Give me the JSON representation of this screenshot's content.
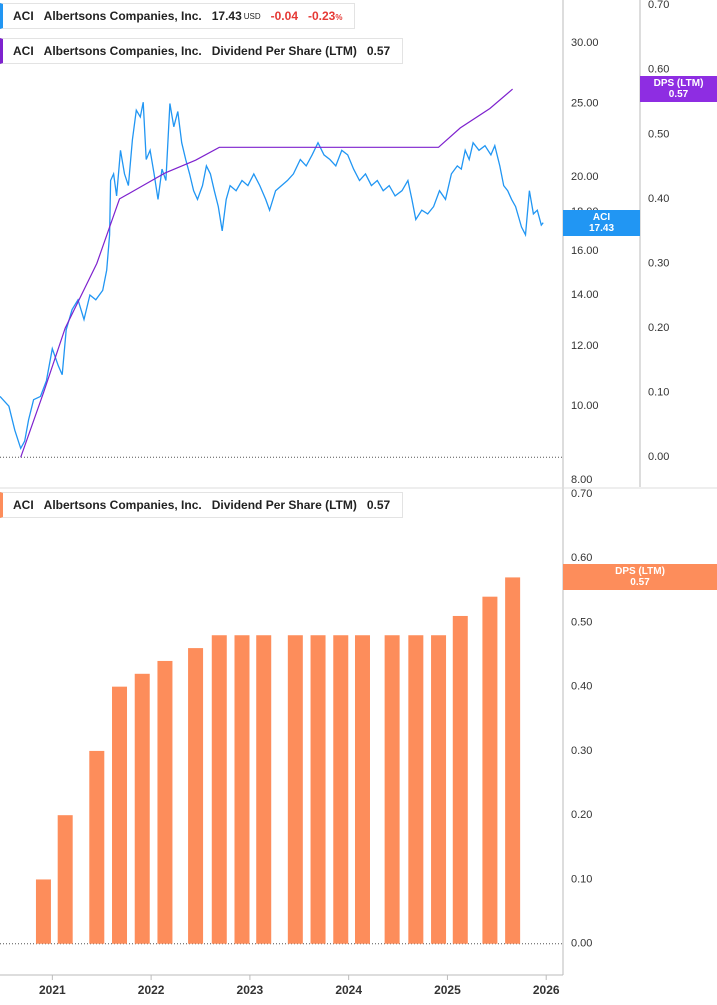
{
  "chart_data": [
    {
      "type": "line",
      "legend": [
        {
          "ticker": "ACI",
          "company": "Albertsons Companies, Inc.",
          "last": 17.43,
          "currency": "USD",
          "change": -0.04,
          "change_pct": -0.23,
          "pct_sign": "%"
        },
        {
          "ticker": "ACI",
          "company": "Albertsons Companies, Inc.",
          "metric": "Dividend Per Share (LTM)",
          "last": 0.57
        }
      ],
      "badges": [
        {
          "label": "ACI",
          "value": 17.43,
          "axis": "y",
          "color": "#2196f3"
        },
        {
          "label": "DPS (LTM)",
          "value": 0.57,
          "axis": "y2",
          "color": "#8e2de2"
        }
      ],
      "xlim": [
        2020.47,
        2026.17
      ],
      "log_y": true,
      "ylim": [
        7.83,
        34.2
      ],
      "yticks": [
        {
          "value": 8,
          "label": "8.00"
        },
        {
          "value": 10,
          "label": "10.00"
        },
        {
          "value": 12,
          "label": "12.00"
        },
        {
          "value": 14,
          "label": "14.00"
        },
        {
          "value": 16,
          "label": "16.00"
        },
        {
          "value": 18,
          "label": "18.00"
        },
        {
          "value": 20,
          "label": "20.00"
        },
        {
          "value": 25,
          "label": "25.00"
        },
        {
          "value": 30,
          "label": "30.00"
        }
      ],
      "y2lim": [
        -0.046,
        0.708
      ],
      "y2ticks": [
        {
          "value": 0,
          "label": "0.00"
        },
        {
          "value": 0.1,
          "label": "0.10"
        },
        {
          "value": 0.2,
          "label": "0.20"
        },
        {
          "value": 0.3,
          "label": "0.30"
        },
        {
          "value": 0.4,
          "label": "0.40"
        },
        {
          "value": 0.5,
          "label": "0.50"
        },
        {
          "value": 0.6,
          "label": "0.60"
        },
        {
          "value": 0.7,
          "label": "0.70"
        }
      ],
      "series": [
        {
          "name": "ACI",
          "color": "#2196f3",
          "x": [
            2020.47,
            2020.56,
            2020.62,
            2020.68,
            2020.72,
            2020.76,
            2020.81,
            2020.88,
            2020.94,
            2021.0,
            2021.06,
            2021.1,
            2021.14,
            2021.2,
            2021.26,
            2021.32,
            2021.38,
            2021.44,
            2021.51,
            2021.55,
            2021.58,
            2021.59,
            2021.62,
            2021.65,
            2021.69,
            2021.73,
            2021.77,
            2021.81,
            2021.85,
            2021.89,
            2021.92,
            2021.95,
            2021.99,
            2022.03,
            2022.07,
            2022.11,
            2022.15,
            2022.19,
            2022.23,
            2022.27,
            2022.31,
            2022.35,
            2022.39,
            2022.43,
            2022.47,
            2022.52,
            2022.56,
            2022.6,
            2022.64,
            2022.68,
            2022.72,
            2022.76,
            2022.8,
            2022.86,
            2022.92,
            2022.98,
            2023.04,
            2023.1,
            2023.16,
            2023.2,
            2023.26,
            2023.32,
            2023.38,
            2023.44,
            2023.51,
            2023.57,
            2023.63,
            2023.69,
            2023.75,
            2023.81,
            2023.87,
            2023.93,
            2023.99,
            2024.05,
            2024.11,
            2024.17,
            2024.23,
            2024.29,
            2024.35,
            2024.41,
            2024.47,
            2024.54,
            2024.6,
            2024.64,
            2024.68,
            2024.74,
            2024.8,
            2024.86,
            2024.92,
            2024.98,
            2025.04,
            2025.1,
            2025.14,
            2025.18,
            2025.22,
            2025.26,
            2025.32,
            2025.38,
            2025.44,
            2025.48,
            2025.53,
            2025.57,
            2025.61,
            2025.65,
            2025.69,
            2025.75,
            2025.79,
            2025.83,
            2025.87,
            2025.91,
            2025.95,
            2025.97
          ],
          "values": [
            10.3,
            10.0,
            9.3,
            8.8,
            9.0,
            9.6,
            10.2,
            10.3,
            10.8,
            11.9,
            11.3,
            11.0,
            12.6,
            13.4,
            13.8,
            13.0,
            14.0,
            13.8,
            14.2,
            15.1,
            16.8,
            19.8,
            20.2,
            18.9,
            21.7,
            20.2,
            19.5,
            22.4,
            24.5,
            24.0,
            25.1,
            21.1,
            21.7,
            20.2,
            18.7,
            20.5,
            19.8,
            25.0,
            23.3,
            24.4,
            22.2,
            21.1,
            20.2,
            19.2,
            18.7,
            19.5,
            20.7,
            20.2,
            19.2,
            18.3,
            17.0,
            18.7,
            19.5,
            19.2,
            19.8,
            19.5,
            20.2,
            19.5,
            18.7,
            18.1,
            19.2,
            19.5,
            19.8,
            20.2,
            21.1,
            20.7,
            21.4,
            22.2,
            21.4,
            21.1,
            20.7,
            21.7,
            21.4,
            20.5,
            19.8,
            20.2,
            19.5,
            19.8,
            19.2,
            19.5,
            18.9,
            19.2,
            19.8,
            18.7,
            17.6,
            18.1,
            17.9,
            18.3,
            19.2,
            18.7,
            20.2,
            20.7,
            20.5,
            21.7,
            21.1,
            22.2,
            21.7,
            22.0,
            21.4,
            22.0,
            20.7,
            19.5,
            19.2,
            18.7,
            18.3,
            17.2,
            16.8,
            19.2,
            17.9,
            18.1,
            17.3,
            17.43
          ]
        },
        {
          "name": "Dividend Per Share (LTM)",
          "color": "#7e22ce",
          "axis": "y2",
          "x": [
            2020.68,
            2020.91,
            2021.13,
            2021.45,
            2021.68,
            2021.91,
            2022.14,
            2022.45,
            2022.69,
            2024.91,
            2025.13,
            2025.43,
            2025.66
          ],
          "values": [
            0,
            0.1,
            0.2,
            0.3,
            0.4,
            0.42,
            0.44,
            0.46,
            0.48,
            0.48,
            0.51,
            0.54,
            0.57
          ]
        }
      ]
    },
    {
      "type": "bar",
      "legend": [
        {
          "ticker": "ACI",
          "company": "Albertsons Companies, Inc.",
          "metric": "Dividend Per Share (LTM)",
          "last": 0.57
        }
      ],
      "badges": [
        {
          "label": "DPS (LTM)",
          "value": 0.57,
          "axis": "y",
          "color": "#fd8d5b"
        }
      ],
      "xlim": [
        2020.47,
        2026.17
      ],
      "xticks": [
        2021,
        2022,
        2023,
        2024,
        2025,
        2026
      ],
      "ylim": [
        -0.044,
        0.706
      ],
      "yticks": [
        {
          "value": 0,
          "label": "0.00"
        },
        {
          "value": 0.1,
          "label": "0.10"
        },
        {
          "value": 0.2,
          "label": "0.20"
        },
        {
          "value": 0.3,
          "label": "0.30"
        },
        {
          "value": 0.4,
          "label": "0.40"
        },
        {
          "value": 0.5,
          "label": "0.50"
        },
        {
          "value": 0.6,
          "label": "0.60"
        },
        {
          "value": 0.7,
          "label": "0.70"
        }
      ],
      "series": [
        {
          "name": "Dividend Per Share (LTM)",
          "color": "#fd8d5b",
          "x": [
            2020.91,
            2021.13,
            2021.45,
            2021.68,
            2021.91,
            2022.14,
            2022.45,
            2022.69,
            2022.92,
            2023.14,
            2023.46,
            2023.69,
            2023.92,
            2024.14,
            2024.44,
            2024.68,
            2024.91,
            2025.13,
            2025.43,
            2025.66
          ],
          "values": [
            0.1,
            0.2,
            0.3,
            0.4,
            0.42,
            0.44,
            0.46,
            0.48,
            0.48,
            0.48,
            0.48,
            0.48,
            0.48,
            0.48,
            0.48,
            0.48,
            0.48,
            0.51,
            0.54,
            0.57
          ]
        }
      ]
    }
  ]
}
